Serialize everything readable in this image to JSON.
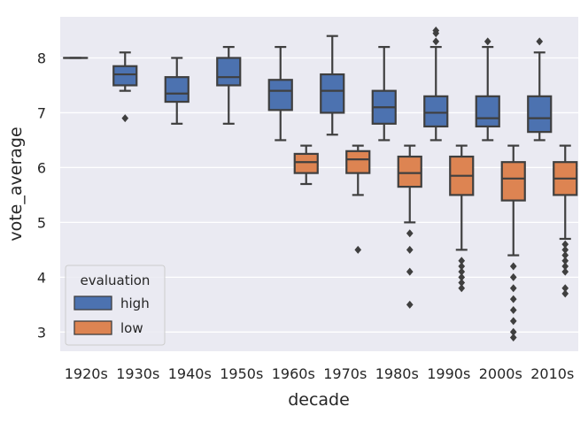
{
  "chart_data": {
    "type": "boxplot",
    "title": "",
    "xlabel": "decade",
    "ylabel": "vote_average",
    "categories": [
      "1920s",
      "1930s",
      "1940s",
      "1950s",
      "1960s",
      "1970s",
      "1980s",
      "1990s",
      "2000s",
      "2010s"
    ],
    "yticks": [
      3,
      4,
      5,
      6,
      7,
      8
    ],
    "ylim": [
      2.65,
      8.75
    ],
    "grid": true,
    "hue": "evaluation",
    "legend": {
      "title": "evaluation",
      "placement": "lower-left"
    },
    "colors": {
      "high": "#4c72b0",
      "low": "#dd8452",
      "background": "#eaeaf2",
      "grid": "#ffffff",
      "line": "#3f3f3f"
    },
    "series": [
      {
        "name": "high",
        "boxes": [
          {
            "category": "1920s",
            "whisker_low": 8.0,
            "q1": 8.0,
            "median": 8.0,
            "q3": 8.0,
            "whisker_high": 8.0,
            "outliers": []
          },
          {
            "category": "1930s",
            "whisker_low": 7.4,
            "q1": 7.5,
            "median": 7.7,
            "q3": 7.85,
            "whisker_high": 8.1,
            "outliers": [
              6.9
            ]
          },
          {
            "category": "1940s",
            "whisker_low": 6.8,
            "q1": 7.2,
            "median": 7.35,
            "q3": 7.65,
            "whisker_high": 8.0,
            "outliers": []
          },
          {
            "category": "1950s",
            "whisker_low": 6.8,
            "q1": 7.5,
            "median": 7.65,
            "q3": 8.0,
            "whisker_high": 8.2,
            "outliers": []
          },
          {
            "category": "1960s",
            "whisker_low": 6.5,
            "q1": 7.05,
            "median": 7.4,
            "q3": 7.6,
            "whisker_high": 8.2,
            "outliers": []
          },
          {
            "category": "1970s",
            "whisker_low": 6.6,
            "q1": 7.0,
            "median": 7.4,
            "q3": 7.7,
            "whisker_high": 8.4,
            "outliers": []
          },
          {
            "category": "1980s",
            "whisker_low": 6.5,
            "q1": 6.8,
            "median": 7.1,
            "q3": 7.4,
            "whisker_high": 8.2,
            "outliers": []
          },
          {
            "category": "1990s",
            "whisker_low": 6.5,
            "q1": 6.75,
            "median": 7.0,
            "q3": 7.3,
            "whisker_high": 8.2,
            "outliers": [
              8.3,
              8.45,
              8.5
            ]
          },
          {
            "category": "2000s",
            "whisker_low": 6.5,
            "q1": 6.75,
            "median": 6.9,
            "q3": 7.3,
            "whisker_high": 8.2,
            "outliers": [
              8.3
            ]
          },
          {
            "category": "2010s",
            "whisker_low": 6.5,
            "q1": 6.65,
            "median": 6.9,
            "q3": 7.3,
            "whisker_high": 8.1,
            "outliers": [
              8.3
            ]
          }
        ]
      },
      {
        "name": "low",
        "boxes": [
          {
            "category": "1960s",
            "whisker_low": 5.7,
            "q1": 5.9,
            "median": 6.1,
            "q3": 6.25,
            "whisker_high": 6.4,
            "outliers": []
          },
          {
            "category": "1970s",
            "whisker_low": 5.5,
            "q1": 5.9,
            "median": 6.15,
            "q3": 6.3,
            "whisker_high": 6.4,
            "outliers": [
              4.5
            ]
          },
          {
            "category": "1980s",
            "whisker_low": 5.0,
            "q1": 5.65,
            "median": 5.9,
            "q3": 6.2,
            "whisker_high": 6.4,
            "outliers": [
              4.8,
              4.5,
              4.1,
              3.5
            ]
          },
          {
            "category": "1990s",
            "whisker_low": 4.5,
            "q1": 5.5,
            "median": 5.85,
            "q3": 6.2,
            "whisker_high": 6.4,
            "outliers": [
              4.3,
              4.2,
              4.1,
              4.0,
              3.9,
              3.8
            ]
          },
          {
            "category": "2000s",
            "whisker_low": 4.4,
            "q1": 5.4,
            "median": 5.8,
            "q3": 6.1,
            "whisker_high": 6.4,
            "outliers": [
              4.2,
              4.0,
              3.8,
              3.6,
              3.4,
              3.2,
              3.0,
              2.9
            ]
          },
          {
            "category": "2010s",
            "whisker_low": 4.7,
            "q1": 5.5,
            "median": 5.8,
            "q3": 6.1,
            "whisker_high": 6.4,
            "outliers": [
              4.6,
              4.5,
              4.4,
              4.3,
              4.2,
              4.1,
              3.8,
              3.7
            ]
          }
        ]
      }
    ]
  }
}
